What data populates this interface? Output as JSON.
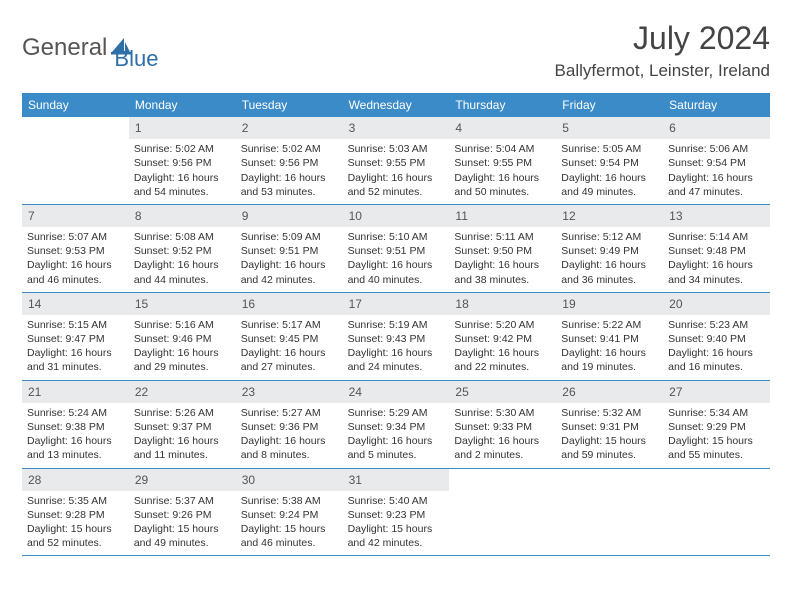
{
  "logo": {
    "part1": "General",
    "part2": "Blue"
  },
  "title": "July 2024",
  "location": "Ballyfermot, Leinster, Ireland",
  "colors": {
    "header_bg": "#3b8bc9",
    "header_text": "#ffffff",
    "daynum_bg": "#e8eaec",
    "border": "#3b8bc9",
    "logo_gray": "#666666",
    "logo_blue": "#2e6fa8"
  },
  "weekdays": [
    "Sunday",
    "Monday",
    "Tuesday",
    "Wednesday",
    "Thursday",
    "Friday",
    "Saturday"
  ],
  "start_offset": 1,
  "days": [
    {
      "n": 1,
      "sr": "5:02 AM",
      "ss": "9:56 PM",
      "dl": "16 hours and 54 minutes."
    },
    {
      "n": 2,
      "sr": "5:02 AM",
      "ss": "9:56 PM",
      "dl": "16 hours and 53 minutes."
    },
    {
      "n": 3,
      "sr": "5:03 AM",
      "ss": "9:55 PM",
      "dl": "16 hours and 52 minutes."
    },
    {
      "n": 4,
      "sr": "5:04 AM",
      "ss": "9:55 PM",
      "dl": "16 hours and 50 minutes."
    },
    {
      "n": 5,
      "sr": "5:05 AM",
      "ss": "9:54 PM",
      "dl": "16 hours and 49 minutes."
    },
    {
      "n": 6,
      "sr": "5:06 AM",
      "ss": "9:54 PM",
      "dl": "16 hours and 47 minutes."
    },
    {
      "n": 7,
      "sr": "5:07 AM",
      "ss": "9:53 PM",
      "dl": "16 hours and 46 minutes."
    },
    {
      "n": 8,
      "sr": "5:08 AM",
      "ss": "9:52 PM",
      "dl": "16 hours and 44 minutes."
    },
    {
      "n": 9,
      "sr": "5:09 AM",
      "ss": "9:51 PM",
      "dl": "16 hours and 42 minutes."
    },
    {
      "n": 10,
      "sr": "5:10 AM",
      "ss": "9:51 PM",
      "dl": "16 hours and 40 minutes."
    },
    {
      "n": 11,
      "sr": "5:11 AM",
      "ss": "9:50 PM",
      "dl": "16 hours and 38 minutes."
    },
    {
      "n": 12,
      "sr": "5:12 AM",
      "ss": "9:49 PM",
      "dl": "16 hours and 36 minutes."
    },
    {
      "n": 13,
      "sr": "5:14 AM",
      "ss": "9:48 PM",
      "dl": "16 hours and 34 minutes."
    },
    {
      "n": 14,
      "sr": "5:15 AM",
      "ss": "9:47 PM",
      "dl": "16 hours and 31 minutes."
    },
    {
      "n": 15,
      "sr": "5:16 AM",
      "ss": "9:46 PM",
      "dl": "16 hours and 29 minutes."
    },
    {
      "n": 16,
      "sr": "5:17 AM",
      "ss": "9:45 PM",
      "dl": "16 hours and 27 minutes."
    },
    {
      "n": 17,
      "sr": "5:19 AM",
      "ss": "9:43 PM",
      "dl": "16 hours and 24 minutes."
    },
    {
      "n": 18,
      "sr": "5:20 AM",
      "ss": "9:42 PM",
      "dl": "16 hours and 22 minutes."
    },
    {
      "n": 19,
      "sr": "5:22 AM",
      "ss": "9:41 PM",
      "dl": "16 hours and 19 minutes."
    },
    {
      "n": 20,
      "sr": "5:23 AM",
      "ss": "9:40 PM",
      "dl": "16 hours and 16 minutes."
    },
    {
      "n": 21,
      "sr": "5:24 AM",
      "ss": "9:38 PM",
      "dl": "16 hours and 13 minutes."
    },
    {
      "n": 22,
      "sr": "5:26 AM",
      "ss": "9:37 PM",
      "dl": "16 hours and 11 minutes."
    },
    {
      "n": 23,
      "sr": "5:27 AM",
      "ss": "9:36 PM",
      "dl": "16 hours and 8 minutes."
    },
    {
      "n": 24,
      "sr": "5:29 AM",
      "ss": "9:34 PM",
      "dl": "16 hours and 5 minutes."
    },
    {
      "n": 25,
      "sr": "5:30 AM",
      "ss": "9:33 PM",
      "dl": "16 hours and 2 minutes."
    },
    {
      "n": 26,
      "sr": "5:32 AM",
      "ss": "9:31 PM",
      "dl": "15 hours and 59 minutes."
    },
    {
      "n": 27,
      "sr": "5:34 AM",
      "ss": "9:29 PM",
      "dl": "15 hours and 55 minutes."
    },
    {
      "n": 28,
      "sr": "5:35 AM",
      "ss": "9:28 PM",
      "dl": "15 hours and 52 minutes."
    },
    {
      "n": 29,
      "sr": "5:37 AM",
      "ss": "9:26 PM",
      "dl": "15 hours and 49 minutes."
    },
    {
      "n": 30,
      "sr": "5:38 AM",
      "ss": "9:24 PM",
      "dl": "15 hours and 46 minutes."
    },
    {
      "n": 31,
      "sr": "5:40 AM",
      "ss": "9:23 PM",
      "dl": "15 hours and 42 minutes."
    }
  ],
  "labels": {
    "sunrise": "Sunrise:",
    "sunset": "Sunset:",
    "daylight": "Daylight:"
  }
}
